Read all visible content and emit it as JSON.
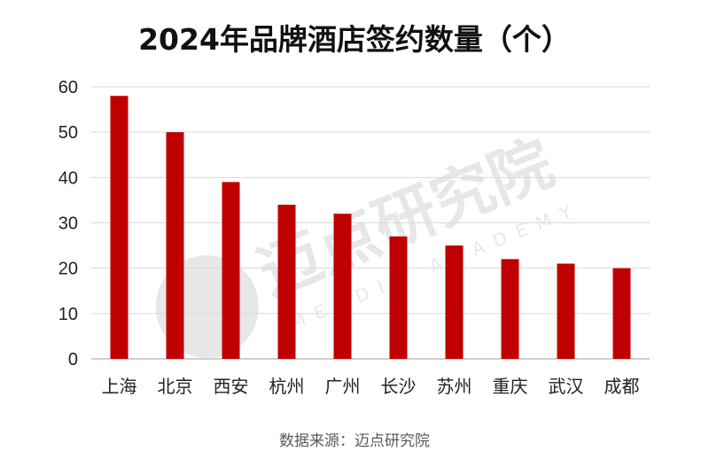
{
  "chart_data": {
    "type": "bar",
    "title": "2024年品牌酒店签约数量（个）",
    "categories": [
      "上海",
      "北京",
      "西安",
      "杭州",
      "广州",
      "长沙",
      "苏州",
      "重庆",
      "武汉",
      "成都"
    ],
    "values": [
      58,
      50,
      39,
      34,
      32,
      27,
      25,
      22,
      21,
      20
    ],
    "yticks": [
      0,
      10,
      20,
      30,
      40,
      50,
      60
    ],
    "ylim": [
      0,
      60
    ],
    "grid": true,
    "bar_color": "#C00000"
  },
  "source_note": "数据来源：迈点研究院",
  "watermark": {
    "text": "迈点研究院",
    "subtext": "MEADIN ACADEMY"
  }
}
